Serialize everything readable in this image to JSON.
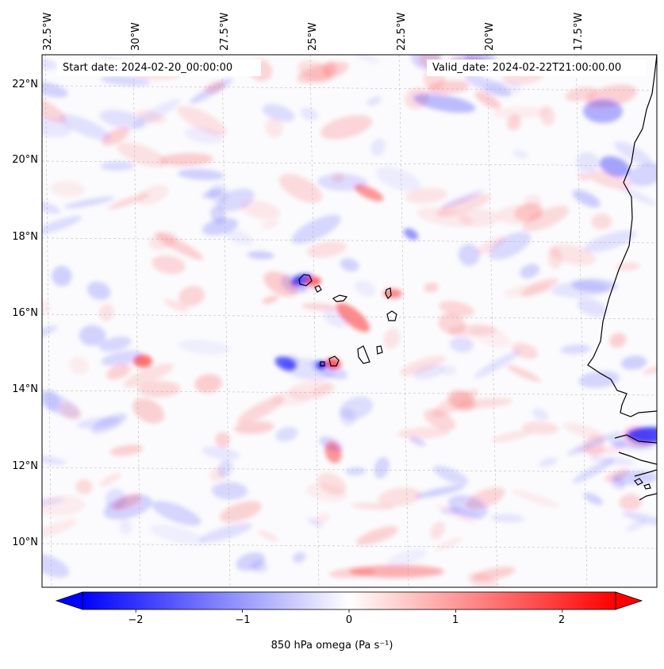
{
  "map": {
    "start_date": "Start date: 2024-02-20_00:00:00",
    "valid_date": "Valid_date: 2024-02-22T21:00:00.00",
    "lon_labels": [
      "32.5°W",
      "30°W",
      "27.5°W",
      "25°W",
      "22.5°W",
      "20°W",
      "17.5°W"
    ],
    "lat_labels": [
      "22°N",
      "20°N",
      "18°N",
      "16°N",
      "14°N",
      "12°N",
      "10°N"
    ],
    "variable_label": "850 hPa omega (Pa s⁻¹)",
    "colorbar": {
      "ticks": [
        "−2",
        "−1",
        "0",
        "1",
        "2"
      ],
      "tick_values": [
        -2,
        -1,
        0,
        1,
        2
      ],
      "min": -2.5,
      "max": 2.5,
      "colormap": "bwr",
      "extend": "both"
    },
    "colors": {
      "negative": "#0000ff",
      "neutral": "#ffffff",
      "positive": "#ff0000",
      "coast": "#000000",
      "grid": "#b0b0b0"
    }
  }
}
